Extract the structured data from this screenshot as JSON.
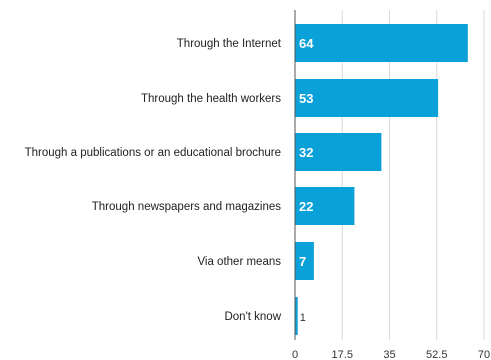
{
  "chart_data": {
    "type": "bar",
    "orientation": "horizontal",
    "categories": [
      "Through the Internet",
      "Through the health workers",
      "Through a publications or an educational brochure",
      "Through newspapers and magazines",
      "Via other means",
      "Don't know"
    ],
    "values": [
      64,
      53,
      32,
      22,
      7,
      1
    ],
    "value_labels": [
      "64",
      "53",
      "32",
      "22",
      "7",
      "1"
    ],
    "xticks": [
      0,
      17.5,
      35,
      52.5,
      70
    ],
    "xtick_labels": [
      "0",
      "17.5",
      "35",
      "52.5",
      "70"
    ],
    "xlim": [
      0,
      70
    ],
    "title": "",
    "xlabel": "",
    "ylabel": "",
    "grid": "vertical",
    "legend": "none",
    "bar_color": "#0aa0d8",
    "grid_color": "#d9d9d9",
    "axis_color": "#555555"
  }
}
